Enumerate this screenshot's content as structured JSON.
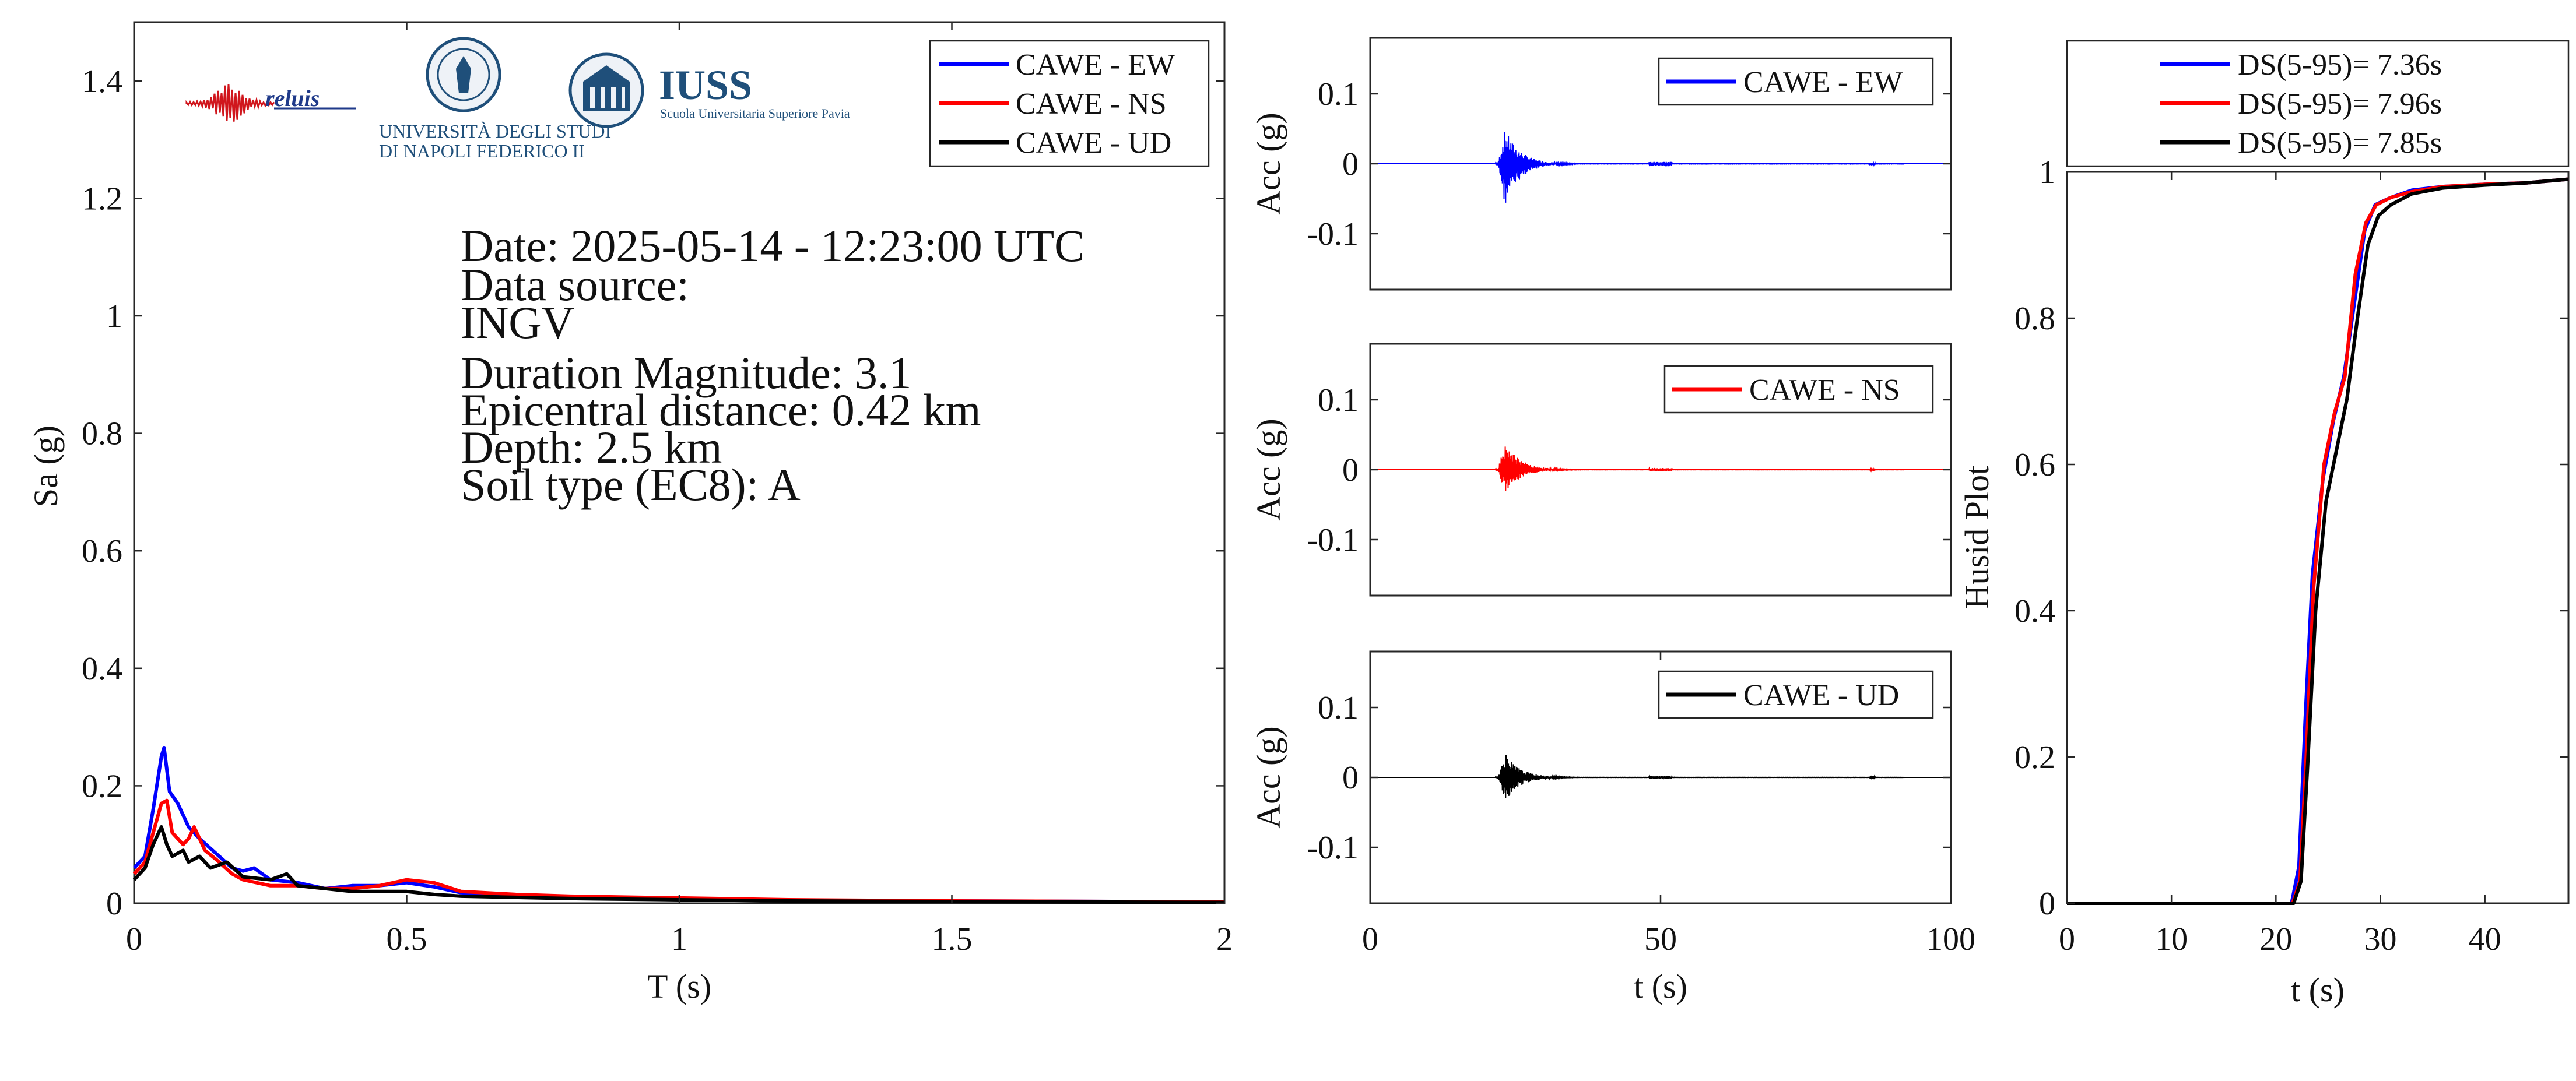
{
  "colors": {
    "ew": "#0000ff",
    "ns": "#ff0000",
    "ud": "#000000",
    "axis": "#262626"
  },
  "logos": {
    "reluis": "reluis",
    "unina_line1": "UNIVERSITÀ DEGLI STUDI",
    "unina_line2": "DI NAPOLI FEDERICO II",
    "iuss_title": "IUSS",
    "iuss_sub": "Scuola Universitaria Superiore Pavia"
  },
  "info": {
    "date": "Date: 2025-05-14 - 12:23:00 UTC",
    "source_label": "Data source:",
    "source": "INGV",
    "magnitude": "Duration Magnitude: 3.1",
    "distance": "Epicentral distance: 0.42 km",
    "depth": "Depth: 2.5 km",
    "soil": "Soil type (EC8): A"
  },
  "chart_data": [
    {
      "type": "line",
      "id": "spectrum",
      "xlabel": "T (s)",
      "ylabel": "Sa (g)",
      "xlim": [
        0,
        2
      ],
      "ylim": [
        0,
        1.5
      ],
      "xticks": [
        0,
        0.5,
        1,
        1.5,
        2
      ],
      "xtick_labels": [
        "0",
        "0.5",
        "1",
        "1.5",
        "2"
      ],
      "yticks": [
        0,
        0.2,
        0.4,
        0.6,
        0.8,
        1,
        1.2,
        1.4
      ],
      "ytick_labels": [
        "0",
        "0.2",
        "0.4",
        "0.6",
        "0.8",
        "1",
        "1.2",
        "1.4"
      ],
      "legend_position": "top-right",
      "series": [
        {
          "name": "CAWE - EW",
          "color": "#0000ff",
          "x": [
            0,
            0.02,
            0.035,
            0.05,
            0.055,
            0.065,
            0.08,
            0.1,
            0.12,
            0.15,
            0.18,
            0.2,
            0.22,
            0.25,
            0.3,
            0.35,
            0.4,
            0.45,
            0.5,
            0.55,
            0.6,
            0.7,
            0.8,
            1.0,
            1.2,
            1.5,
            1.8,
            2.0
          ],
          "y": [
            0.06,
            0.08,
            0.16,
            0.25,
            0.265,
            0.19,
            0.17,
            0.13,
            0.11,
            0.085,
            0.06,
            0.055,
            0.06,
            0.04,
            0.035,
            0.025,
            0.03,
            0.03,
            0.035,
            0.028,
            0.018,
            0.012,
            0.009,
            0.007,
            0.005,
            0.004,
            0.003,
            0.002
          ]
        },
        {
          "name": "CAWE - NS",
          "color": "#ff0000",
          "x": [
            0,
            0.02,
            0.035,
            0.05,
            0.06,
            0.07,
            0.09,
            0.1,
            0.11,
            0.13,
            0.15,
            0.18,
            0.2,
            0.25,
            0.3,
            0.35,
            0.4,
            0.45,
            0.5,
            0.55,
            0.6,
            0.7,
            0.8,
            1.0,
            1.2,
            1.5,
            1.8,
            2.0
          ],
          "y": [
            0.05,
            0.07,
            0.12,
            0.17,
            0.175,
            0.12,
            0.1,
            0.11,
            0.13,
            0.09,
            0.075,
            0.05,
            0.04,
            0.03,
            0.03,
            0.025,
            0.025,
            0.03,
            0.04,
            0.035,
            0.02,
            0.015,
            0.012,
            0.009,
            0.006,
            0.004,
            0.003,
            0.002
          ]
        },
        {
          "name": "CAWE - UD",
          "color": "#000000",
          "x": [
            0,
            0.02,
            0.035,
            0.05,
            0.06,
            0.07,
            0.09,
            0.1,
            0.12,
            0.14,
            0.17,
            0.2,
            0.25,
            0.28,
            0.3,
            0.35,
            0.4,
            0.45,
            0.5,
            0.55,
            0.6,
            0.7,
            0.8,
            1.0,
            1.2,
            1.5,
            1.8,
            2.0
          ],
          "y": [
            0.04,
            0.06,
            0.1,
            0.13,
            0.1,
            0.08,
            0.09,
            0.07,
            0.08,
            0.06,
            0.07,
            0.045,
            0.04,
            0.05,
            0.03,
            0.025,
            0.02,
            0.02,
            0.02,
            0.015,
            0.012,
            0.01,
            0.008,
            0.006,
            0.004,
            0.003,
            0.002,
            0.0015
          ]
        }
      ]
    },
    {
      "type": "line",
      "id": "acc-ew",
      "ylabel": "Acc (g)",
      "xlim": [
        0,
        100
      ],
      "ylim": [
        -0.18,
        0.18
      ],
      "yticks": [
        0.1,
        0,
        -0.1
      ],
      "ytick_labels": [
        "0.1",
        "0",
        "-0.1"
      ],
      "legend_position": "top-right",
      "series": [
        {
          "name": "CAWE - EW",
          "color": "#0000ff",
          "peak": 0.05,
          "trough": -0.06,
          "onset": 22
        }
      ]
    },
    {
      "type": "line",
      "id": "acc-ns",
      "ylabel": "Acc (g)",
      "xlim": [
        0,
        100
      ],
      "ylim": [
        -0.18,
        0.18
      ],
      "yticks": [
        0.1,
        0,
        -0.1
      ],
      "ytick_labels": [
        "0.1",
        "0",
        "-0.1"
      ],
      "legend_position": "top-right",
      "series": [
        {
          "name": "CAWE - NS",
          "color": "#ff0000",
          "peak": 0.04,
          "trough": -0.035,
          "onset": 22
        }
      ]
    },
    {
      "type": "line",
      "id": "acc-ud",
      "xlabel": "t (s)",
      "ylabel": "Acc (g)",
      "xlim": [
        0,
        100
      ],
      "ylim": [
        -0.18,
        0.18
      ],
      "xticks": [
        0,
        50,
        100
      ],
      "xtick_labels": [
        "0",
        "50",
        "100"
      ],
      "yticks": [
        0.1,
        0,
        -0.1
      ],
      "ytick_labels": [
        "0.1",
        "0",
        "-0.1"
      ],
      "legend_position": "top-right",
      "series": [
        {
          "name": "CAWE - UD",
          "color": "#000000",
          "peak": 0.035,
          "trough": -0.035,
          "onset": 22
        }
      ]
    },
    {
      "type": "line",
      "id": "husid",
      "xlabel": "t (s)",
      "ylabel": "Husid Plot",
      "xlim": [
        0,
        48
      ],
      "ylim": [
        0,
        1
      ],
      "xticks": [
        0,
        10,
        20,
        30,
        40
      ],
      "xtick_labels": [
        "0",
        "10",
        "20",
        "30",
        "40"
      ],
      "yticks": [
        0,
        0.2,
        0.4,
        0.6,
        0.8,
        1
      ],
      "ytick_labels": [
        "0",
        "0.2",
        "0.4",
        "0.6",
        "0.8",
        "1"
      ],
      "legend_position": "top",
      "series": [
        {
          "name": "DS(5-95)= 7.36s",
          "color": "#0000ff",
          "x": [
            0,
            21.5,
            22.2,
            22.8,
            23.5,
            24.5,
            25.5,
            26.5,
            27.5,
            28.5,
            29.5,
            31,
            33,
            36,
            40,
            44,
            48
          ],
          "y": [
            0,
            0,
            0.05,
            0.25,
            0.45,
            0.58,
            0.66,
            0.72,
            0.82,
            0.92,
            0.955,
            0.965,
            0.975,
            0.98,
            0.983,
            0.985,
            0.99
          ]
        },
        {
          "name": "DS(5-95)= 7.96s",
          "color": "#ff0000",
          "x": [
            0,
            21.6,
            22.3,
            22.9,
            23.6,
            24.6,
            25.6,
            26.6,
            27.6,
            28.6,
            29.6,
            31,
            33,
            36,
            40,
            44,
            48
          ],
          "y": [
            0,
            0,
            0.03,
            0.2,
            0.43,
            0.6,
            0.67,
            0.72,
            0.86,
            0.93,
            0.955,
            0.965,
            0.973,
            0.98,
            0.983,
            0.985,
            0.99
          ]
        },
        {
          "name": "DS(5-95)= 7.85s",
          "color": "#000000",
          "x": [
            0,
            21.7,
            22.4,
            23.0,
            23.8,
            24.8,
            25.8,
            26.8,
            27.8,
            28.8,
            29.8,
            31,
            33,
            36,
            40,
            44,
            48
          ],
          "y": [
            0,
            0,
            0.03,
            0.18,
            0.4,
            0.55,
            0.62,
            0.69,
            0.8,
            0.9,
            0.94,
            0.955,
            0.97,
            0.978,
            0.982,
            0.985,
            0.99
          ]
        }
      ]
    }
  ]
}
